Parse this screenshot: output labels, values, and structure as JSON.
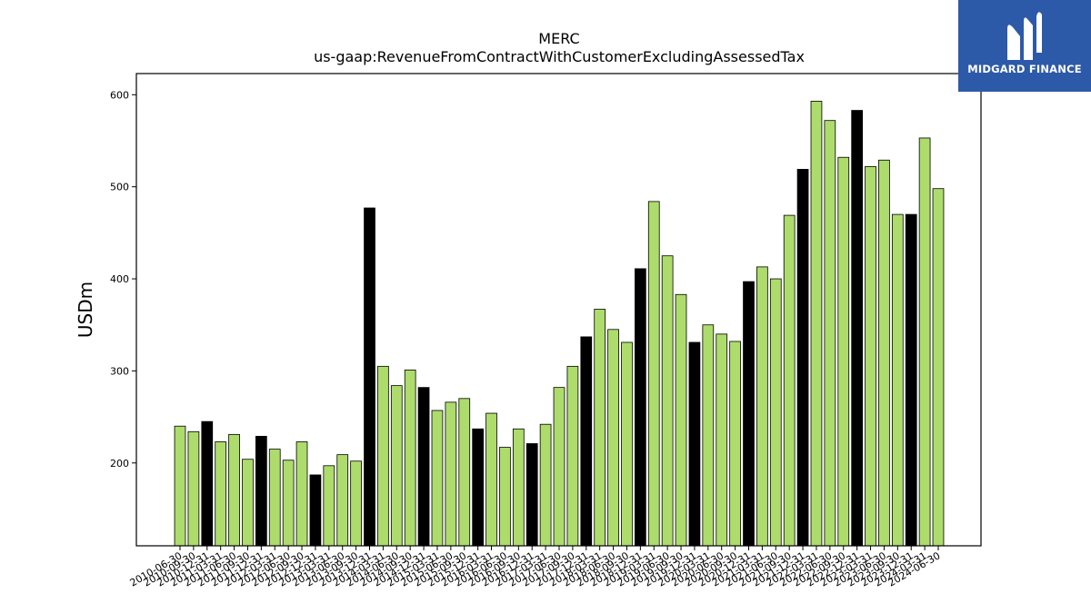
{
  "brand": {
    "name": "MIDGARD FINANCE",
    "color": "#2d5aa8"
  },
  "chart_data": {
    "type": "bar",
    "title": "MERC",
    "subtitle": "us-gaap:RevenueFromContractWithCustomerExcludingAssessedTax",
    "ylabel": "USDm",
    "xlabel": "",
    "ylim": [
      110,
      623
    ],
    "yticks": [
      200,
      300,
      400,
      500,
      600
    ],
    "grid": false,
    "colors": {
      "quarter": "#addc6c",
      "annual": "#000000",
      "edge": "#000000"
    },
    "categories": [
      "2010-06-30",
      "2010-09-30",
      "2010-12-31",
      "2011-03-31",
      "2011-06-30",
      "2011-09-30",
      "2011-12-31",
      "2012-03-31",
      "2012-06-30",
      "2012-09-30",
      "2012-12-31",
      "2013-03-31",
      "2013-06-30",
      "2013-09-30",
      "2013-12-31",
      "2014-03-31",
      "2014-06-30",
      "2014-09-30",
      "2014-12-31",
      "2015-03-31",
      "2015-06-30",
      "2015-09-30",
      "2015-12-31",
      "2016-03-31",
      "2016-06-30",
      "2016-09-30",
      "2016-12-31",
      "2017-03-31",
      "2017-06-30",
      "2017-09-30",
      "2017-12-31",
      "2018-03-31",
      "2018-06-30",
      "2018-09-30",
      "2018-12-31",
      "2019-03-31",
      "2019-06-30",
      "2019-09-30",
      "2019-12-31",
      "2020-03-31",
      "2020-06-30",
      "2020-09-30",
      "2020-12-31",
      "2021-03-31",
      "2021-06-30",
      "2021-09-30",
      "2021-12-31",
      "2022-03-31",
      "2022-06-30",
      "2022-09-30",
      "2022-12-31",
      "2023-03-31",
      "2023-06-30",
      "2023-09-30",
      "2023-12-31",
      "2024-03-31",
      "2024-06-30"
    ],
    "values": [
      240,
      234,
      245,
      223,
      231,
      204,
      229,
      215,
      203,
      223,
      187,
      197,
      209,
      202,
      477,
      305,
      284,
      301,
      282,
      257,
      266,
      270,
      237,
      254,
      217,
      237,
      221,
      242,
      282,
      305,
      337,
      367,
      345,
      331,
      411,
      484,
      425,
      383,
      331,
      350,
      340,
      332,
      397,
      413,
      400,
      469,
      519,
      593,
      572,
      532,
      583,
      522,
      529,
      470,
      470,
      553,
      498
    ],
    "annual_flags": [
      0,
      0,
      1,
      0,
      0,
      0,
      1,
      0,
      0,
      0,
      1,
      0,
      0,
      0,
      1,
      0,
      0,
      0,
      1,
      0,
      0,
      0,
      1,
      0,
      0,
      0,
      1,
      0,
      0,
      0,
      1,
      0,
      0,
      0,
      1,
      0,
      0,
      0,
      1,
      0,
      0,
      0,
      1,
      0,
      0,
      0,
      1,
      0,
      0,
      0,
      1,
      0,
      0,
      0,
      1,
      0,
      0
    ]
  }
}
